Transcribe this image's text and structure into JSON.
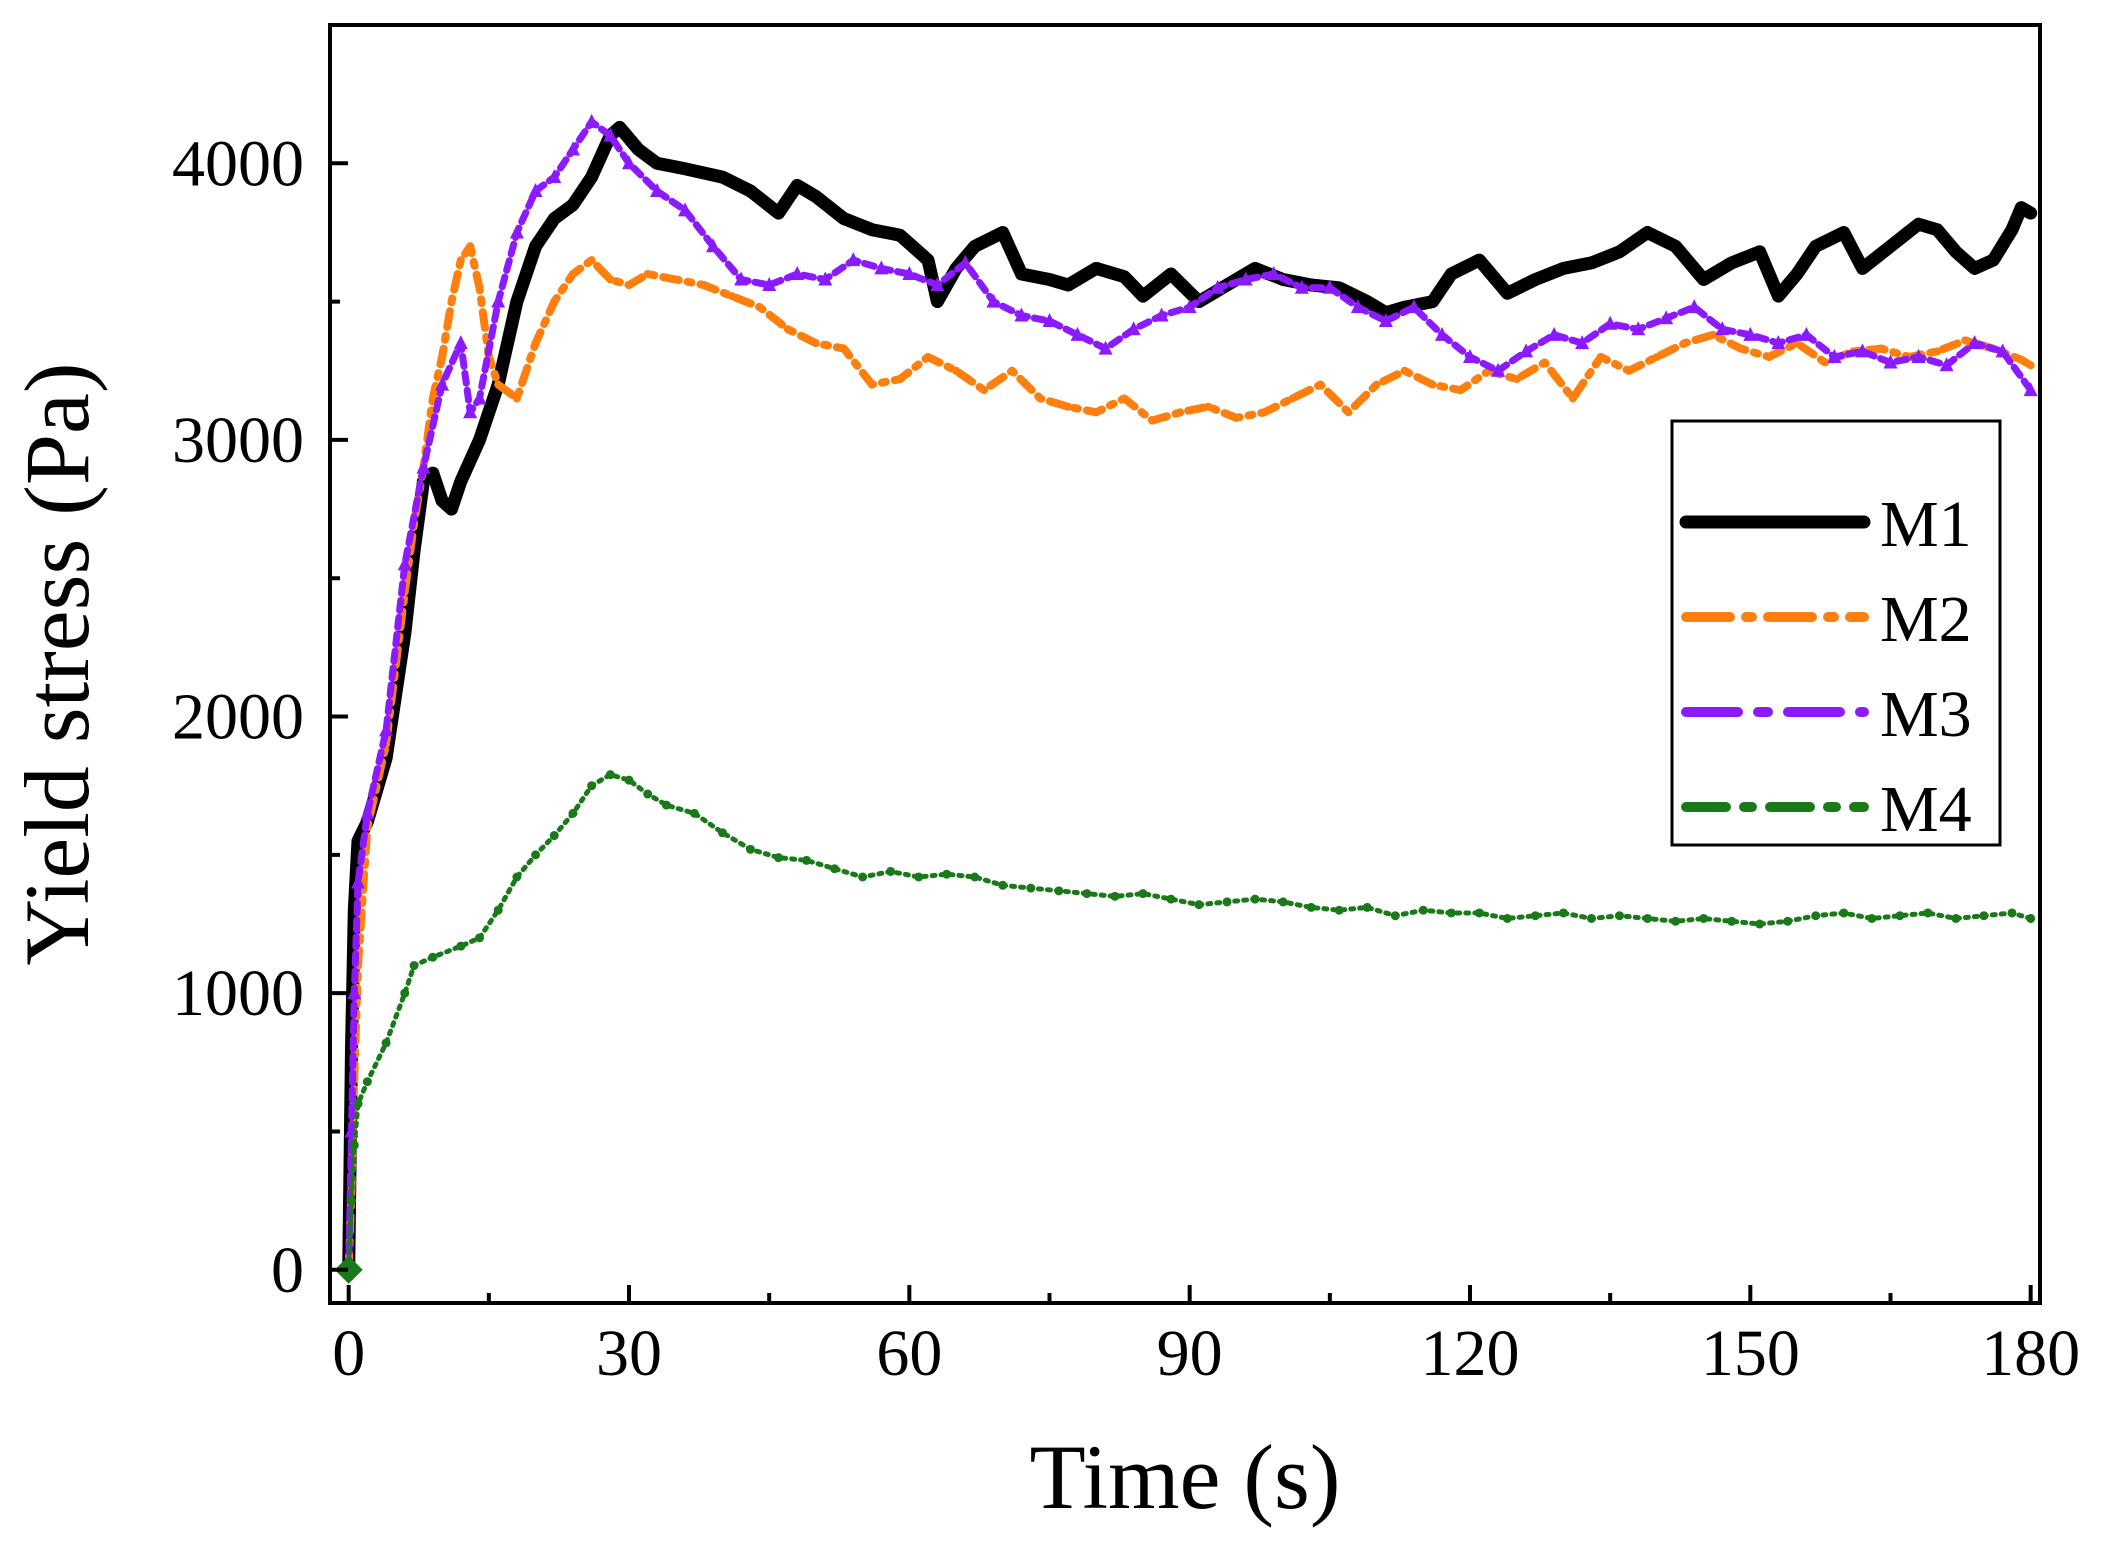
{
  "chart_data": {
    "type": "line",
    "title": "",
    "xlabel": "Time (s)",
    "ylabel": "Yield stress (Pa)",
    "xlim": [
      -2,
      181
    ],
    "ylim": [
      -120,
      4500
    ],
    "xticks": [
      0,
      30,
      60,
      90,
      120,
      150,
      180
    ],
    "yticks": [
      0,
      1000,
      2000,
      3000,
      4000
    ],
    "xtick_labels": [
      "0",
      "30",
      "60",
      "90",
      "120",
      "150",
      "180"
    ],
    "ytick_labels": [
      "0",
      "1000",
      "2000",
      "3000",
      "4000"
    ],
    "legend_position": "right",
    "series": [
      {
        "name": "M1",
        "color": "#000000",
        "style": "solid",
        "points": [
          [
            0,
            0
          ],
          [
            0.3,
            800
          ],
          [
            0.6,
            1300
          ],
          [
            1,
            1550
          ],
          [
            2,
            1620
          ],
          [
            4,
            1850
          ],
          [
            6,
            2300
          ],
          [
            7,
            2600
          ],
          [
            8,
            2850
          ],
          [
            9,
            2880
          ],
          [
            10,
            2780
          ],
          [
            11,
            2750
          ],
          [
            12,
            2850
          ],
          [
            14,
            3000
          ],
          [
            16,
            3200
          ],
          [
            18,
            3500
          ],
          [
            20,
            3700
          ],
          [
            22,
            3800
          ],
          [
            24,
            3850
          ],
          [
            26,
            3950
          ],
          [
            28,
            4100
          ],
          [
            29,
            4130
          ],
          [
            31,
            4050
          ],
          [
            33,
            4000
          ],
          [
            36,
            3980
          ],
          [
            40,
            3950
          ],
          [
            43,
            3900
          ],
          [
            46,
            3820
          ],
          [
            48,
            3920
          ],
          [
            50,
            3880
          ],
          [
            53,
            3800
          ],
          [
            56,
            3760
          ],
          [
            59,
            3740
          ],
          [
            62,
            3650
          ],
          [
            63,
            3500
          ],
          [
            65,
            3620
          ],
          [
            67,
            3700
          ],
          [
            70,
            3750
          ],
          [
            72,
            3600
          ],
          [
            75,
            3580
          ],
          [
            77,
            3560
          ],
          [
            80,
            3620
          ],
          [
            83,
            3590
          ],
          [
            85,
            3520
          ],
          [
            88,
            3600
          ],
          [
            91,
            3500
          ],
          [
            94,
            3560
          ],
          [
            97,
            3620
          ],
          [
            100,
            3580
          ],
          [
            103,
            3560
          ],
          [
            106,
            3550
          ],
          [
            109,
            3500
          ],
          [
            111,
            3460
          ],
          [
            113,
            3480
          ],
          [
            116,
            3500
          ],
          [
            118,
            3600
          ],
          [
            121,
            3650
          ],
          [
            124,
            3530
          ],
          [
            127,
            3580
          ],
          [
            130,
            3620
          ],
          [
            133,
            3640
          ],
          [
            136,
            3680
          ],
          [
            139,
            3750
          ],
          [
            142,
            3700
          ],
          [
            145,
            3580
          ],
          [
            148,
            3640
          ],
          [
            151,
            3680
          ],
          [
            153,
            3520
          ],
          [
            155,
            3600
          ],
          [
            157,
            3700
          ],
          [
            160,
            3750
          ],
          [
            162,
            3620
          ],
          [
            165,
            3700
          ],
          [
            168,
            3780
          ],
          [
            170,
            3760
          ],
          [
            172,
            3680
          ],
          [
            174,
            3620
          ],
          [
            176,
            3650
          ],
          [
            178,
            3760
          ],
          [
            179,
            3840
          ],
          [
            180,
            3820
          ]
        ]
      },
      {
        "name": "M2",
        "color": "#ff7f0e",
        "style": "dash-dot",
        "points": [
          [
            0,
            0
          ],
          [
            0.3,
            300
          ],
          [
            0.6,
            700
          ],
          [
            1,
            1100
          ],
          [
            2,
            1600
          ],
          [
            4,
            1900
          ],
          [
            6,
            2450
          ],
          [
            7,
            2700
          ],
          [
            8,
            2900
          ],
          [
            9,
            3150
          ],
          [
            10,
            3300
          ],
          [
            11,
            3500
          ],
          [
            12,
            3650
          ],
          [
            13,
            3700
          ],
          [
            14,
            3550
          ],
          [
            15,
            3300
          ],
          [
            16,
            3200
          ],
          [
            18,
            3150
          ],
          [
            20,
            3350
          ],
          [
            22,
            3500
          ],
          [
            24,
            3600
          ],
          [
            26,
            3650
          ],
          [
            28,
            3580
          ],
          [
            30,
            3560
          ],
          [
            32,
            3600
          ],
          [
            35,
            3580
          ],
          [
            38,
            3560
          ],
          [
            41,
            3520
          ],
          [
            44,
            3480
          ],
          [
            47,
            3400
          ],
          [
            50,
            3350
          ],
          [
            53,
            3330
          ],
          [
            56,
            3200
          ],
          [
            59,
            3220
          ],
          [
            62,
            3300
          ],
          [
            65,
            3250
          ],
          [
            68,
            3180
          ],
          [
            71,
            3250
          ],
          [
            74,
            3150
          ],
          [
            77,
            3120
          ],
          [
            80,
            3100
          ],
          [
            83,
            3150
          ],
          [
            86,
            3070
          ],
          [
            89,
            3100
          ],
          [
            92,
            3120
          ],
          [
            95,
            3080
          ],
          [
            98,
            3100
          ],
          [
            101,
            3150
          ],
          [
            104,
            3200
          ],
          [
            107,
            3100
          ],
          [
            110,
            3200
          ],
          [
            113,
            3250
          ],
          [
            116,
            3200
          ],
          [
            119,
            3180
          ],
          [
            122,
            3250
          ],
          [
            125,
            3220
          ],
          [
            128,
            3280
          ],
          [
            131,
            3150
          ],
          [
            134,
            3300
          ],
          [
            137,
            3250
          ],
          [
            140,
            3300
          ],
          [
            143,
            3350
          ],
          [
            146,
            3380
          ],
          [
            149,
            3330
          ],
          [
            152,
            3300
          ],
          [
            155,
            3350
          ],
          [
            158,
            3280
          ],
          [
            161,
            3320
          ],
          [
            164,
            3330
          ],
          [
            167,
            3300
          ],
          [
            170,
            3320
          ],
          [
            173,
            3360
          ],
          [
            176,
            3330
          ],
          [
            179,
            3290
          ],
          [
            180,
            3270
          ]
        ]
      },
      {
        "name": "M3",
        "color": "#8b1aff",
        "style": "dashed-triangles",
        "points": [
          [
            0,
            0
          ],
          [
            0.3,
            500
          ],
          [
            0.6,
            1000
          ],
          [
            1,
            1400
          ],
          [
            2,
            1650
          ],
          [
            4,
            1950
          ],
          [
            6,
            2550
          ],
          [
            8,
            2900
          ],
          [
            10,
            3200
          ],
          [
            12,
            3350
          ],
          [
            13,
            3100
          ],
          [
            14,
            3150
          ],
          [
            16,
            3500
          ],
          [
            18,
            3750
          ],
          [
            20,
            3900
          ],
          [
            22,
            3950
          ],
          [
            24,
            4050
          ],
          [
            26,
            4150
          ],
          [
            28,
            4100
          ],
          [
            30,
            4000
          ],
          [
            33,
            3900
          ],
          [
            36,
            3830
          ],
          [
            39,
            3700
          ],
          [
            42,
            3580
          ],
          [
            45,
            3560
          ],
          [
            48,
            3600
          ],
          [
            51,
            3580
          ],
          [
            54,
            3650
          ],
          [
            57,
            3620
          ],
          [
            60,
            3600
          ],
          [
            63,
            3560
          ],
          [
            66,
            3640
          ],
          [
            69,
            3500
          ],
          [
            72,
            3450
          ],
          [
            75,
            3430
          ],
          [
            78,
            3380
          ],
          [
            81,
            3330
          ],
          [
            84,
            3400
          ],
          [
            87,
            3450
          ],
          [
            90,
            3480
          ],
          [
            93,
            3550
          ],
          [
            96,
            3580
          ],
          [
            99,
            3600
          ],
          [
            102,
            3550
          ],
          [
            105,
            3550
          ],
          [
            108,
            3480
          ],
          [
            111,
            3430
          ],
          [
            114,
            3480
          ],
          [
            117,
            3380
          ],
          [
            120,
            3300
          ],
          [
            123,
            3250
          ],
          [
            126,
            3320
          ],
          [
            129,
            3380
          ],
          [
            132,
            3350
          ],
          [
            135,
            3420
          ],
          [
            138,
            3400
          ],
          [
            141,
            3440
          ],
          [
            144,
            3480
          ],
          [
            147,
            3400
          ],
          [
            150,
            3380
          ],
          [
            153,
            3350
          ],
          [
            156,
            3380
          ],
          [
            159,
            3300
          ],
          [
            162,
            3320
          ],
          [
            165,
            3280
          ],
          [
            168,
            3300
          ],
          [
            171,
            3270
          ],
          [
            174,
            3350
          ],
          [
            177,
            3320
          ],
          [
            180,
            3180
          ]
        ]
      },
      {
        "name": "M4",
        "color": "#1a7a1a",
        "style": "dotted-stars",
        "points": [
          [
            0,
            0
          ],
          [
            0.3,
            250
          ],
          [
            0.6,
            450
          ],
          [
            1,
            600
          ],
          [
            2,
            680
          ],
          [
            4,
            820
          ],
          [
            6,
            1000
          ],
          [
            7,
            1100
          ],
          [
            9,
            1130
          ],
          [
            12,
            1170
          ],
          [
            14,
            1200
          ],
          [
            16,
            1300
          ],
          [
            18,
            1420
          ],
          [
            20,
            1500
          ],
          [
            22,
            1570
          ],
          [
            24,
            1650
          ],
          [
            26,
            1750
          ],
          [
            28,
            1790
          ],
          [
            30,
            1770
          ],
          [
            32,
            1720
          ],
          [
            34,
            1680
          ],
          [
            37,
            1650
          ],
          [
            40,
            1580
          ],
          [
            43,
            1520
          ],
          [
            46,
            1490
          ],
          [
            49,
            1480
          ],
          [
            52,
            1450
          ],
          [
            55,
            1420
          ],
          [
            58,
            1440
          ],
          [
            61,
            1420
          ],
          [
            64,
            1430
          ],
          [
            67,
            1420
          ],
          [
            70,
            1390
          ],
          [
            73,
            1380
          ],
          [
            76,
            1370
          ],
          [
            79,
            1360
          ],
          [
            82,
            1350
          ],
          [
            85,
            1360
          ],
          [
            88,
            1340
          ],
          [
            91,
            1320
          ],
          [
            94,
            1330
          ],
          [
            97,
            1340
          ],
          [
            100,
            1330
          ],
          [
            103,
            1310
          ],
          [
            106,
            1300
          ],
          [
            109,
            1310
          ],
          [
            112,
            1280
          ],
          [
            115,
            1300
          ],
          [
            118,
            1290
          ],
          [
            121,
            1290
          ],
          [
            124,
            1270
          ],
          [
            127,
            1280
          ],
          [
            130,
            1290
          ],
          [
            133,
            1270
          ],
          [
            136,
            1280
          ],
          [
            139,
            1270
          ],
          [
            142,
            1260
          ],
          [
            145,
            1270
          ],
          [
            148,
            1260
          ],
          [
            151,
            1250
          ],
          [
            154,
            1260
          ],
          [
            157,
            1280
          ],
          [
            160,
            1290
          ],
          [
            163,
            1270
          ],
          [
            166,
            1280
          ],
          [
            169,
            1290
          ],
          [
            172,
            1270
          ],
          [
            175,
            1280
          ],
          [
            178,
            1290
          ],
          [
            180,
            1270
          ]
        ]
      }
    ]
  }
}
